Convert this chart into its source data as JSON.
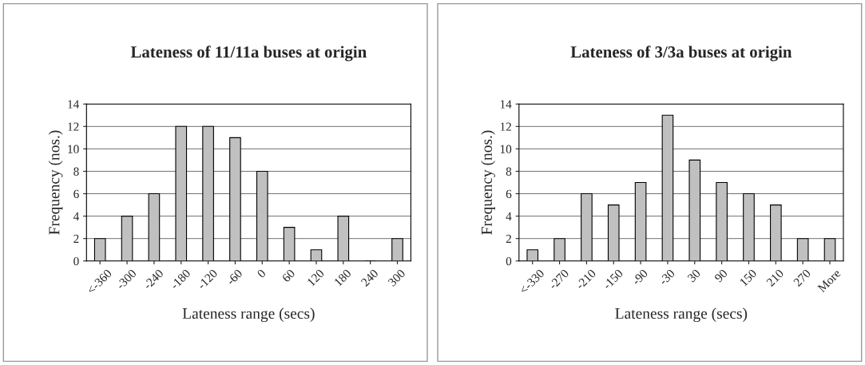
{
  "chart_data": [
    {
      "type": "bar",
      "title": "Lateness of 11/11a buses at origin",
      "xlabel": "Lateness range (secs)",
      "ylabel": "Frequency (nos.)",
      "categories": [
        "<-360",
        "-300",
        "-240",
        "-180",
        "-120",
        "-60",
        "0",
        "60",
        "120",
        "180",
        "240",
        "300"
      ],
      "values": [
        2,
        4,
        6,
        12,
        12,
        11,
        8,
        3,
        1,
        4,
        0,
        2
      ],
      "color": "#c0c0c0",
      "ylim": [
        0,
        14
      ],
      "yticks": [
        0,
        2,
        4,
        6,
        8,
        10,
        12,
        14
      ],
      "grid": "y",
      "legend": false
    },
    {
      "type": "bar",
      "title": "Lateness of 3/3a buses at origin",
      "xlabel": "Lateness range (secs)",
      "ylabel": "Frequency (nos.)",
      "categories": [
        "<-330",
        "-270",
        "-210",
        "-150",
        "-90",
        "-30",
        "30",
        "90",
        "150",
        "210",
        "270",
        "More"
      ],
      "values": [
        1,
        2,
        6,
        5,
        7,
        13,
        9,
        7,
        6,
        5,
        2,
        2
      ],
      "color": "#c0c0c0",
      "ylim": [
        0,
        14
      ],
      "yticks": [
        0,
        2,
        4,
        6,
        8,
        10,
        12,
        14
      ],
      "grid": "y",
      "legend": false
    }
  ]
}
